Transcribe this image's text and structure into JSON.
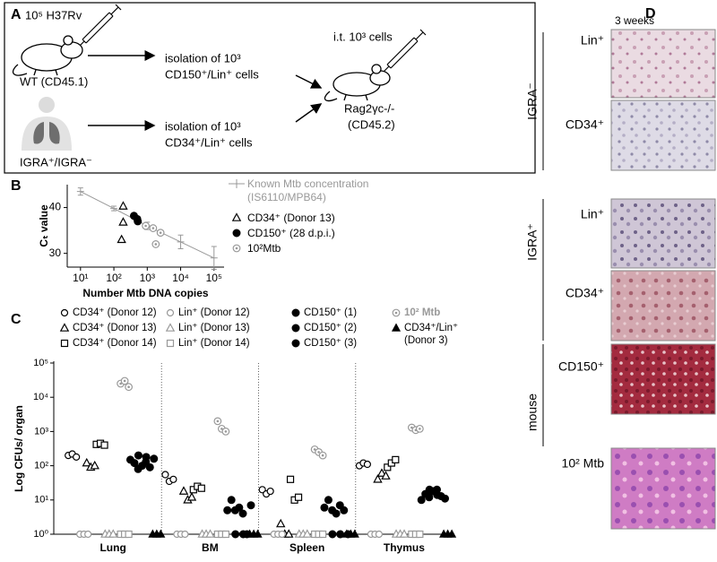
{
  "panel_a": {
    "label": "A",
    "inoculum": "10⁵ H37Rv",
    "donor_mouse": "WT (CD45.1)",
    "isolation_top": [
      "isolation of 10³",
      "CD150⁺/Lin⁺ cells"
    ],
    "transfer": "i.t. 10³ cells",
    "recipient": [
      "Rag2γc-/-",
      "(CD45.2)"
    ],
    "isolation_bottom": [
      "isolation of 10³",
      "CD34⁺/Lin⁺ cells"
    ],
    "human_donor": "IGRA⁺/IGRA⁻"
  },
  "chart_data": [
    {
      "type": "scatter",
      "panel_label": "B",
      "xlabel": "Number Mtb DNA copies",
      "ylabel": "Cₜ value",
      "xscale": "log",
      "xlim": [
        4,
        200000
      ],
      "xticks": [
        {
          "value": 10,
          "label": "10¹"
        },
        {
          "value": 100,
          "label": "10²"
        },
        {
          "value": 1000,
          "label": "10³"
        },
        {
          "value": 10000,
          "label": "10⁴"
        },
        {
          "value": 100000,
          "label": "10⁵"
        }
      ],
      "ylim": [
        27,
        45
      ],
      "yticks": [
        30,
        40
      ],
      "series": [
        {
          "name": "Known Mtb concentration (IS6110/MPB64)",
          "color": "#999999",
          "marker": "line-errorbar",
          "x": [
            10,
            100,
            1000,
            10000,
            100000
          ],
          "values": [
            43.5,
            39.8,
            36,
            32.5,
            29
          ],
          "errors": [
            0.8,
            0.5,
            0.8,
            1.5,
            2.5
          ]
        },
        {
          "name": "CD34⁺ (Donor 13)",
          "color": "#000000",
          "marker": "triangle-open",
          "x": [
            190,
            190,
            170
          ],
          "values": [
            40.3,
            36.8,
            33
          ]
        },
        {
          "name": "CD150⁺ (28 d.p.i.)",
          "color": "#000000",
          "marker": "circle-filled",
          "x": [
            400,
            500,
            520
          ],
          "values": [
            38.2,
            37.5,
            37
          ]
        },
        {
          "name": "10²Mtb",
          "color": "#999999",
          "marker": "circle-dot",
          "x": [
            900,
            1500,
            1800,
            2500
          ],
          "values": [
            36,
            35.5,
            32,
            34.5
          ]
        }
      ]
    },
    {
      "type": "strip",
      "panel_label": "C",
      "ylabel": "Log CFUs/ organ",
      "yscale": "log",
      "ylim": [
        1,
        100000
      ],
      "yticks": [
        {
          "value": 1,
          "label": "10⁰"
        },
        {
          "value": 10,
          "label": "10¹"
        },
        {
          "value": 100,
          "label": "10²"
        },
        {
          "value": 1000,
          "label": "10³"
        },
        {
          "value": 10000,
          "label": "10⁴"
        },
        {
          "value": 100000,
          "label": "10⁵"
        }
      ],
      "categories": [
        "Lung",
        "BM",
        "Spleen",
        "Thymus"
      ],
      "series": [
        {
          "name": "CD34⁺ (Donor 12)",
          "color": "#000000",
          "marker": "circle-open",
          "values": [
            [
              200,
              220,
              180
            ],
            [
              55,
              35,
              40
            ],
            [
              20,
              15,
              18
            ],
            [
              100,
              120,
              110
            ]
          ]
        },
        {
          "name": "CD34⁺ (Donor 13)",
          "color": "#000000",
          "marker": "triangle-open",
          "values": [
            [
              120,
              90,
              100
            ],
            [
              18,
              10,
              12
            ],
            [
              2,
              1,
              1
            ],
            [
              40,
              60,
              50
            ]
          ]
        },
        {
          "name": "CD34⁺ (Donor 14)",
          "color": "#000000",
          "marker": "square-open",
          "values": [
            [
              420,
              450,
              400
            ],
            [
              20,
              25,
              22
            ],
            [
              40,
              10,
              12
            ],
            [
              90,
              120,
              150
            ]
          ]
        },
        {
          "name": "Lin⁺ (Donor 12)",
          "color": "#999999",
          "marker": "circle-open",
          "values": [
            [
              1,
              1,
              1
            ],
            [
              1,
              1,
              1
            ],
            [
              1,
              1,
              1
            ],
            [
              1,
              1,
              1
            ]
          ]
        },
        {
          "name": "Lin⁺ (Donor 13)",
          "color": "#999999",
          "marker": "triangle-open",
          "values": [
            [
              1,
              1,
              1
            ],
            [
              1,
              1,
              1
            ],
            [
              1,
              1,
              1
            ],
            [
              1,
              1,
              1
            ]
          ]
        },
        {
          "name": "Lin⁺ (Donor 14)",
          "color": "#999999",
          "marker": "square-open",
          "values": [
            [
              1,
              1,
              1
            ],
            [
              1,
              1,
              1
            ],
            [
              1,
              1,
              1
            ],
            [
              1,
              1,
              1
            ]
          ]
        },
        {
          "name": "CD150⁺ (1)",
          "color": "#000000",
          "marker": "circle-filled",
          "values": [
            [
              150,
              120,
              200
            ],
            [
              5,
              10,
              1
            ],
            [
              6,
              10,
              1
            ],
            [
              10,
              15,
              20
            ]
          ]
        },
        {
          "name": "CD150⁺ (2)",
          "color": "#000000",
          "marker": "circle-filled",
          "values": [
            [
              80,
              100,
              180
            ],
            [
              5,
              6,
              1
            ],
            [
              5,
              4,
              1
            ],
            [
              12,
              18,
              14
            ]
          ]
        },
        {
          "name": "CD150⁺ (3)",
          "color": "#000000",
          "marker": "circle-filled",
          "values": [
            [
              130,
              90,
              160
            ],
            [
              4,
              1,
              7
            ],
            [
              7,
              5,
              1
            ],
            [
              20,
              13,
              11
            ]
          ]
        },
        {
          "name": "10² Mtb",
          "color": "#999999",
          "marker": "circle-dot",
          "values": [
            [
              25000,
              30000,
              20000
            ],
            [
              2000,
              1200,
              1000
            ],
            [
              300,
              250,
              200
            ],
            [
              1300,
              1100,
              1200
            ]
          ]
        },
        {
          "name": "CD34⁺/Lin⁺ (Donor 3)",
          "color": "#000000",
          "marker": "triangle-filled",
          "values": [
            [
              1,
              1,
              1
            ],
            [
              1,
              1,
              1
            ],
            [
              1,
              1,
              1
            ],
            [
              1,
              1,
              1
            ]
          ]
        }
      ]
    }
  ],
  "panel_d": {
    "label": "D",
    "column_title": "3 weeks",
    "groups": [
      {
        "label": "IGRA⁻",
        "rows": [
          "Lin⁺",
          "CD34⁺"
        ]
      },
      {
        "label": "IGRA⁺",
        "rows": [
          "Lin⁺",
          "CD34⁺"
        ]
      },
      {
        "label": "mouse",
        "rows": [
          "CD150⁺"
        ]
      }
    ],
    "control": "10² Mtb"
  }
}
